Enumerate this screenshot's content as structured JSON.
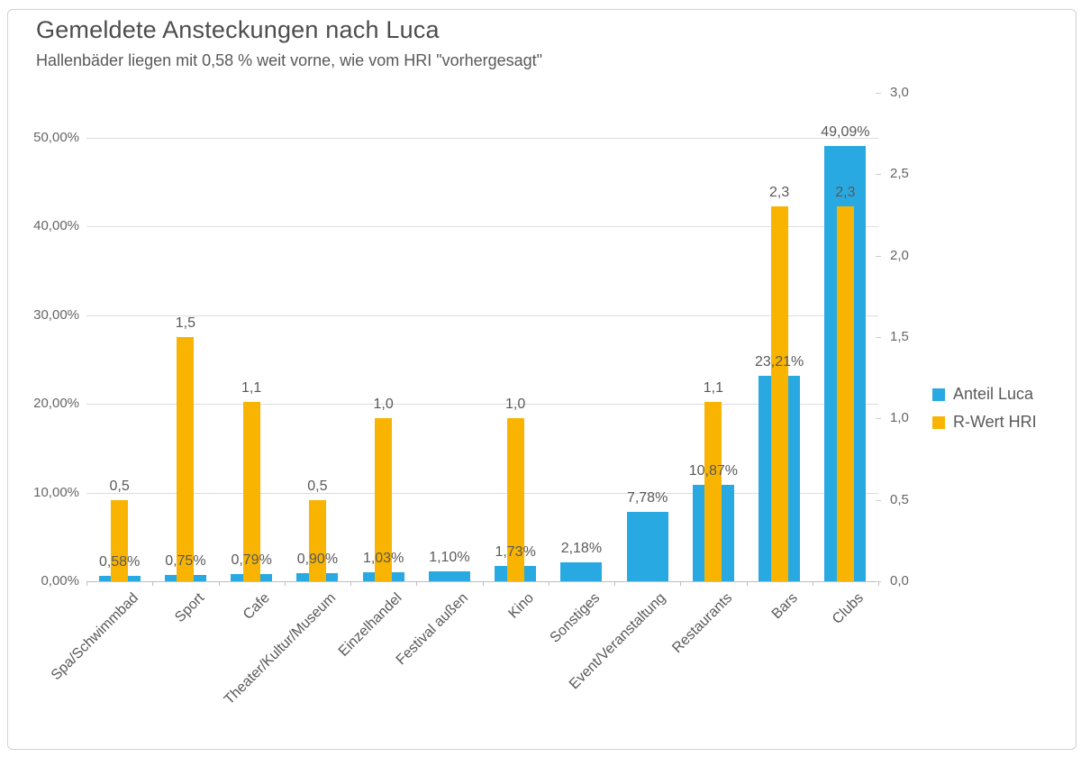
{
  "chart_data": {
    "type": "bar",
    "title": "Gemeldete Ansteckungen nach Luca",
    "subtitle": "Hallenbäder liegen mit 0,58 % weit vorne, wie vom HRI \"vorhergesagt\"",
    "categories": [
      "Spa/Schwimmbad",
      "Sport",
      "Cafe",
      "Theater/Kultur/Museum",
      "Einzelhandel",
      "Festival außen",
      "Kino",
      "Sonstiges",
      "Event/Veranstaltung",
      "Restaurants",
      "Bars",
      "Clubs"
    ],
    "series": [
      {
        "name": "Anteil Luca",
        "axis": "left",
        "color": "#29a9e1",
        "values": [
          0.58,
          0.75,
          0.79,
          0.9,
          1.03,
          1.1,
          1.73,
          2.18,
          7.78,
          10.87,
          23.21,
          49.09
        ],
        "labels": [
          "0,58%",
          "0,75%",
          "0,79%",
          "0,90%",
          "1,03%",
          "1,10%",
          "1,73%",
          "2,18%",
          "7,78%",
          "10,87%",
          "23,21%",
          "49,09%"
        ]
      },
      {
        "name": "R-Wert HRI",
        "axis": "right",
        "color": "#f8b400",
        "values": [
          0.5,
          1.5,
          1.1,
          0.5,
          1.0,
          null,
          1.0,
          null,
          null,
          1.1,
          2.3,
          2.3
        ],
        "labels": [
          "0,5",
          "1,5",
          "1,1",
          "0,5",
          "1,0",
          null,
          "1,0",
          null,
          null,
          "1,1",
          "2,3",
          "2,3"
        ]
      }
    ],
    "left_axis": {
      "min": 0,
      "max": 50,
      "tick_values": [
        0,
        10,
        20,
        30,
        40,
        50
      ],
      "tick_labels": [
        "0,00%",
        "10,00%",
        "20,00%",
        "30,00%",
        "40,00%",
        "50,00%"
      ]
    },
    "right_axis": {
      "min": 0,
      "max": 3,
      "tick_values": [
        0,
        0.5,
        1,
        1.5,
        2,
        2.5,
        3
      ],
      "tick_labels": [
        "0,0",
        "0,5",
        "1,0",
        "1,5",
        "2,0",
        "2,5",
        "3,0"
      ]
    },
    "legend": {
      "position": "right-middle",
      "entries": [
        "Anteil Luca",
        "R-Wert HRI"
      ]
    },
    "grid": "horizontal-on"
  }
}
